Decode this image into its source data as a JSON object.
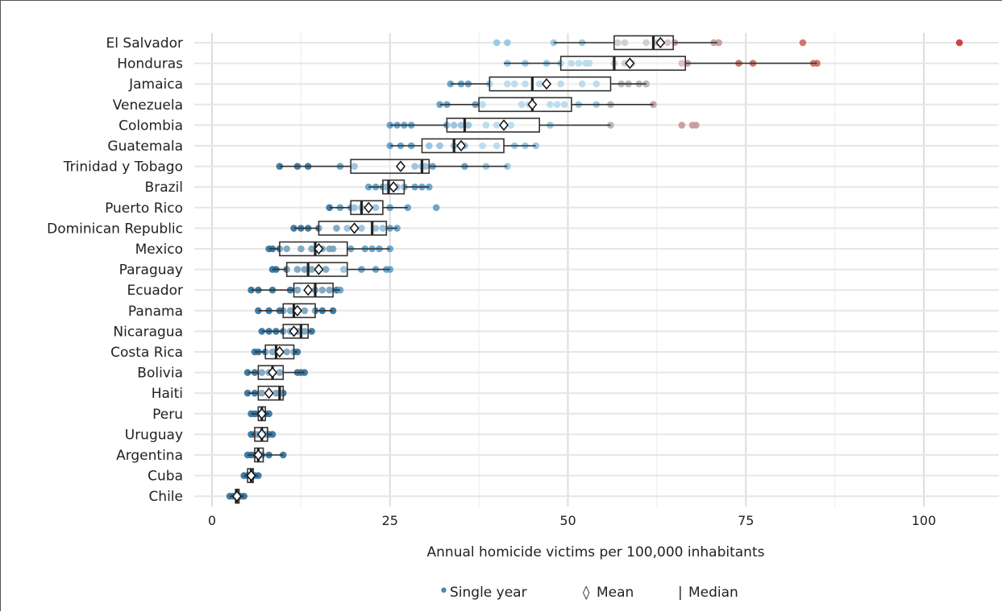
{
  "chart_data": {
    "type": "box",
    "xlabel": "Annual homicide  victims per 100,000 inhabitants",
    "xlim": [
      -3,
      110
    ],
    "xticks": [
      0,
      25,
      50,
      75,
      100
    ],
    "grid": true,
    "legend_placement": "bottom",
    "legend": {
      "single_year_symbol": "•",
      "single_year_label": "Single year",
      "mean_symbol": "◊",
      "mean_label": "Mean",
      "median_symbol": "|",
      "median_label": "Median"
    },
    "colors": {
      "dark_blue": "#2f6f9a",
      "mid_blue": "#5d9dc6",
      "light_blue": "#8ec6e2",
      "grey": "#b0b0b8",
      "light_red": "#c49898",
      "mid_red": "#c96a60",
      "red": "#d42a2a"
    },
    "countries": [
      {
        "name": "El Salvador",
        "q1": 56.5,
        "median": 62,
        "q3": 64.8,
        "mean": 63,
        "whisker_low": 48,
        "whisker_high": 71,
        "points": [
          40,
          41.5,
          48,
          52,
          57,
          58,
          61,
          62.5,
          64,
          65,
          70.5,
          71.2,
          83,
          105
        ]
      },
      {
        "name": "Honduras",
        "q1": 49,
        "median": 56.5,
        "q3": 66.5,
        "mean": 58.7,
        "whisker_low": 41,
        "whisker_high": 85,
        "points": [
          41.5,
          44,
          47,
          49,
          50.5,
          51.5,
          52.5,
          53,
          56.5,
          58,
          59,
          66,
          66.8,
          74,
          76,
          84.5,
          85
        ]
      },
      {
        "name": "Jamaica",
        "q1": 39,
        "median": 45,
        "q3": 56,
        "mean": 47,
        "whisker_low": 33.5,
        "whisker_high": 61,
        "points": [
          33.5,
          35,
          36,
          39,
          41.5,
          42.5,
          44,
          46,
          49,
          52,
          54,
          57.5,
          58.5,
          60,
          61
        ]
      },
      {
        "name": "Venezuela",
        "q1": 37.5,
        "median": 45,
        "q3": 50.5,
        "mean": 45,
        "whisker_low": 32,
        "whisker_high": 62,
        "points": [
          32,
          33,
          37,
          38,
          43.5,
          44.5,
          45,
          47.5,
          48.5,
          49.5,
          51.5,
          54,
          56,
          62
        ]
      },
      {
        "name": "Colombia",
        "q1": 33,
        "median": 35.5,
        "q3": 46,
        "mean": 41,
        "whisker_low": 25,
        "whisker_high": 56,
        "points": [
          25,
          26,
          27,
          28,
          33,
          34,
          35,
          36,
          38.5,
          40,
          42,
          47.5,
          56,
          66,
          67.5,
          68
        ]
      },
      {
        "name": "Guatemala",
        "q1": 29.5,
        "median": 34,
        "q3": 41,
        "mean": 35,
        "whisker_low": 25,
        "whisker_high": 45.5,
        "points": [
          25,
          26.5,
          28,
          30.5,
          32,
          34,
          35.5,
          38,
          40,
          42.5,
          44,
          45.5
        ]
      },
      {
        "name": "Trinidad y Tobago",
        "q1": 19.5,
        "median": 29.5,
        "q3": 30.5,
        "mean": 26.5,
        "whisker_low": 9.5,
        "whisker_high": 41.5,
        "points": [
          9.5,
          12,
          13.5,
          18,
          20,
          28.5,
          29.5,
          30,
          31,
          35.5,
          38.5,
          41.5
        ]
      },
      {
        "name": "Brazil",
        "q1": 24,
        "median": 24.8,
        "q3": 27,
        "mean": 25.5,
        "whisker_low": 22,
        "whisker_high": 30.5,
        "points": [
          22,
          23,
          24,
          24.5,
          25,
          25.5,
          26,
          27,
          28.5,
          29.5,
          30.5
        ]
      },
      {
        "name": "Puerto Rico",
        "q1": 19.5,
        "median": 21,
        "q3": 24,
        "mean": 22,
        "whisker_low": 16.5,
        "whisker_high": 27.5,
        "points": [
          16.5,
          18,
          19.5,
          20,
          21,
          22,
          23,
          25,
          27.5,
          31.5
        ]
      },
      {
        "name": "Dominican Republic",
        "q1": 15,
        "median": 22.5,
        "q3": 24.5,
        "mean": 20,
        "whisker_low": 11.5,
        "whisker_high": 26,
        "points": [
          11.5,
          12.5,
          13.5,
          15,
          17.5,
          19,
          21,
          23,
          24,
          25,
          26
        ]
      },
      {
        "name": "Mexico",
        "q1": 9.5,
        "median": 14.5,
        "q3": 19,
        "mean": 15,
        "whisker_low": 8,
        "whisker_high": 25,
        "points": [
          8,
          8.5,
          9.5,
          10.5,
          12.5,
          14,
          15.5,
          16.5,
          17,
          19.5,
          21.5,
          22.5,
          23.5,
          25
        ]
      },
      {
        "name": "Paraguay",
        "q1": 10.5,
        "median": 13.5,
        "q3": 19,
        "mean": 15,
        "whisker_low": 8.5,
        "whisker_high": 25,
        "points": [
          8.5,
          9,
          10.5,
          12,
          13,
          14,
          15,
          16,
          18.5,
          21,
          23,
          24.5,
          25
        ]
      },
      {
        "name": "Ecuador",
        "q1": 11.5,
        "median": 14.5,
        "q3": 17,
        "mean": 13.5,
        "whisker_low": 5.5,
        "whisker_high": 18,
        "points": [
          5.5,
          6.5,
          8.5,
          11,
          12,
          13.5,
          14.5,
          15.5,
          16.5,
          17.5,
          18
        ]
      },
      {
        "name": "Panama",
        "q1": 10,
        "median": 11.5,
        "q3": 14.5,
        "mean": 12,
        "whisker_low": 6.5,
        "whisker_high": 17,
        "points": [
          6.5,
          8,
          9.5,
          10,
          11,
          12,
          13,
          14.5,
          15.5,
          17
        ]
      },
      {
        "name": "Nicaragua",
        "q1": 10,
        "median": 12.5,
        "q3": 13.5,
        "mean": 11.5,
        "whisker_low": 7,
        "whisker_high": 14,
        "points": [
          7,
          8,
          9,
          10,
          11,
          12,
          13,
          14
        ]
      },
      {
        "name": "Costa Rica",
        "q1": 7.5,
        "median": 9,
        "q3": 11.5,
        "mean": 9.5,
        "whisker_low": 6,
        "whisker_high": 12,
        "points": [
          6,
          6.5,
          7.5,
          8.5,
          9.5,
          10.5,
          11.5,
          12
        ]
      },
      {
        "name": "Bolivia",
        "q1": 6.5,
        "median": 8.5,
        "q3": 10,
        "mean": 8.5,
        "whisker_low": 5,
        "whisker_high": 13,
        "points": [
          5,
          6,
          7,
          8,
          8.5,
          9.5,
          12,
          12.5,
          13
        ]
      },
      {
        "name": "Haiti",
        "q1": 6.5,
        "median": 9.5,
        "q3": 10,
        "mean": 8,
        "whisker_low": 5,
        "whisker_high": 10,
        "points": [
          5,
          6,
          7,
          8,
          9,
          9.5,
          10
        ]
      },
      {
        "name": "Peru",
        "q1": 6.5,
        "median": 7,
        "q3": 7.5,
        "mean": 7,
        "whisker_low": 5.5,
        "whisker_high": 8,
        "points": [
          5.5,
          6,
          6.5,
          7,
          7.5,
          8
        ]
      },
      {
        "name": "Uruguay",
        "q1": 6,
        "median": 7,
        "q3": 7.8,
        "mean": 7,
        "whisker_low": 5.5,
        "whisker_high": 8.5,
        "points": [
          5.5,
          6,
          6.5,
          7,
          7.5,
          8,
          8.5
        ]
      },
      {
        "name": "Argentina",
        "q1": 6,
        "median": 6.5,
        "q3": 7.2,
        "mean": 6.5,
        "whisker_low": 5,
        "whisker_high": 10,
        "points": [
          5,
          5.5,
          6,
          6.5,
          7,
          8,
          10
        ]
      },
      {
        "name": "Cuba",
        "q1": 5,
        "median": 5.5,
        "q3": 5.8,
        "mean": 5.5,
        "whisker_low": 4.5,
        "whisker_high": 6.5,
        "points": [
          4.5,
          5,
          5.5,
          6,
          6.5
        ]
      },
      {
        "name": "Chile",
        "q1": 3.3,
        "median": 3.5,
        "q3": 3.8,
        "mean": 3.5,
        "whisker_low": 2.5,
        "whisker_high": 4.5,
        "points": [
          2.5,
          3,
          3.5,
          4,
          4.5
        ]
      }
    ]
  }
}
